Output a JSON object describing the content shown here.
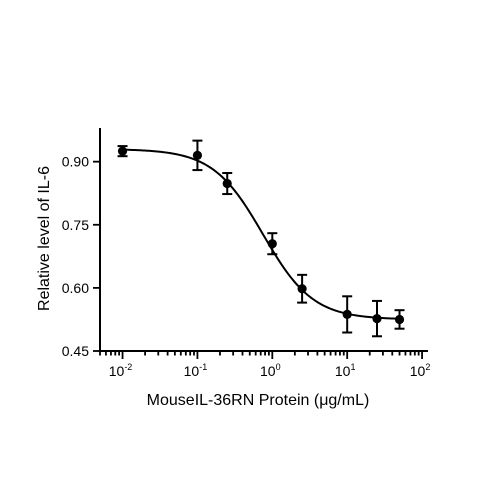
{
  "chart_data": {
    "type": "scatter",
    "title": "",
    "xlabel": "MouseIL-36RN Protein (μg/mL)",
    "ylabel": "Relative level of IL-6",
    "x_scale": "log",
    "xlim": [
      0.005,
      120
    ],
    "ylim": [
      0.45,
      0.98
    ],
    "x_ticks": [
      {
        "value": 0.01,
        "base": "10",
        "exp": "-2"
      },
      {
        "value": 0.1,
        "base": "10",
        "exp": "-1"
      },
      {
        "value": 1,
        "base": "10",
        "exp": "0"
      },
      {
        "value": 10,
        "base": "10",
        "exp": "1"
      },
      {
        "value": 100,
        "base": "10",
        "exp": "2"
      }
    ],
    "y_ticks": [
      "0.45",
      "0.60",
      "0.75",
      "0.90"
    ],
    "grid": false,
    "legend": "none",
    "series": [
      {
        "points": [
          {
            "x": 0.01,
            "y": 0.925,
            "err": 0.012
          },
          {
            "x": 0.1,
            "y": 0.915,
            "err": 0.035
          },
          {
            "x": 0.25,
            "y": 0.848,
            "err": 0.025
          },
          {
            "x": 1,
            "y": 0.705,
            "err": 0.025
          },
          {
            "x": 2.5,
            "y": 0.598,
            "err": 0.033
          },
          {
            "x": 10,
            "y": 0.537,
            "err": 0.043
          },
          {
            "x": 25,
            "y": 0.527,
            "err": 0.042
          },
          {
            "x": 50,
            "y": 0.525,
            "err": 0.022
          }
        ],
        "fit": {
          "model": "4PL",
          "top": 0.93,
          "bottom": 0.525,
          "ec50": 0.75,
          "hill": 1.3
        }
      }
    ]
  }
}
